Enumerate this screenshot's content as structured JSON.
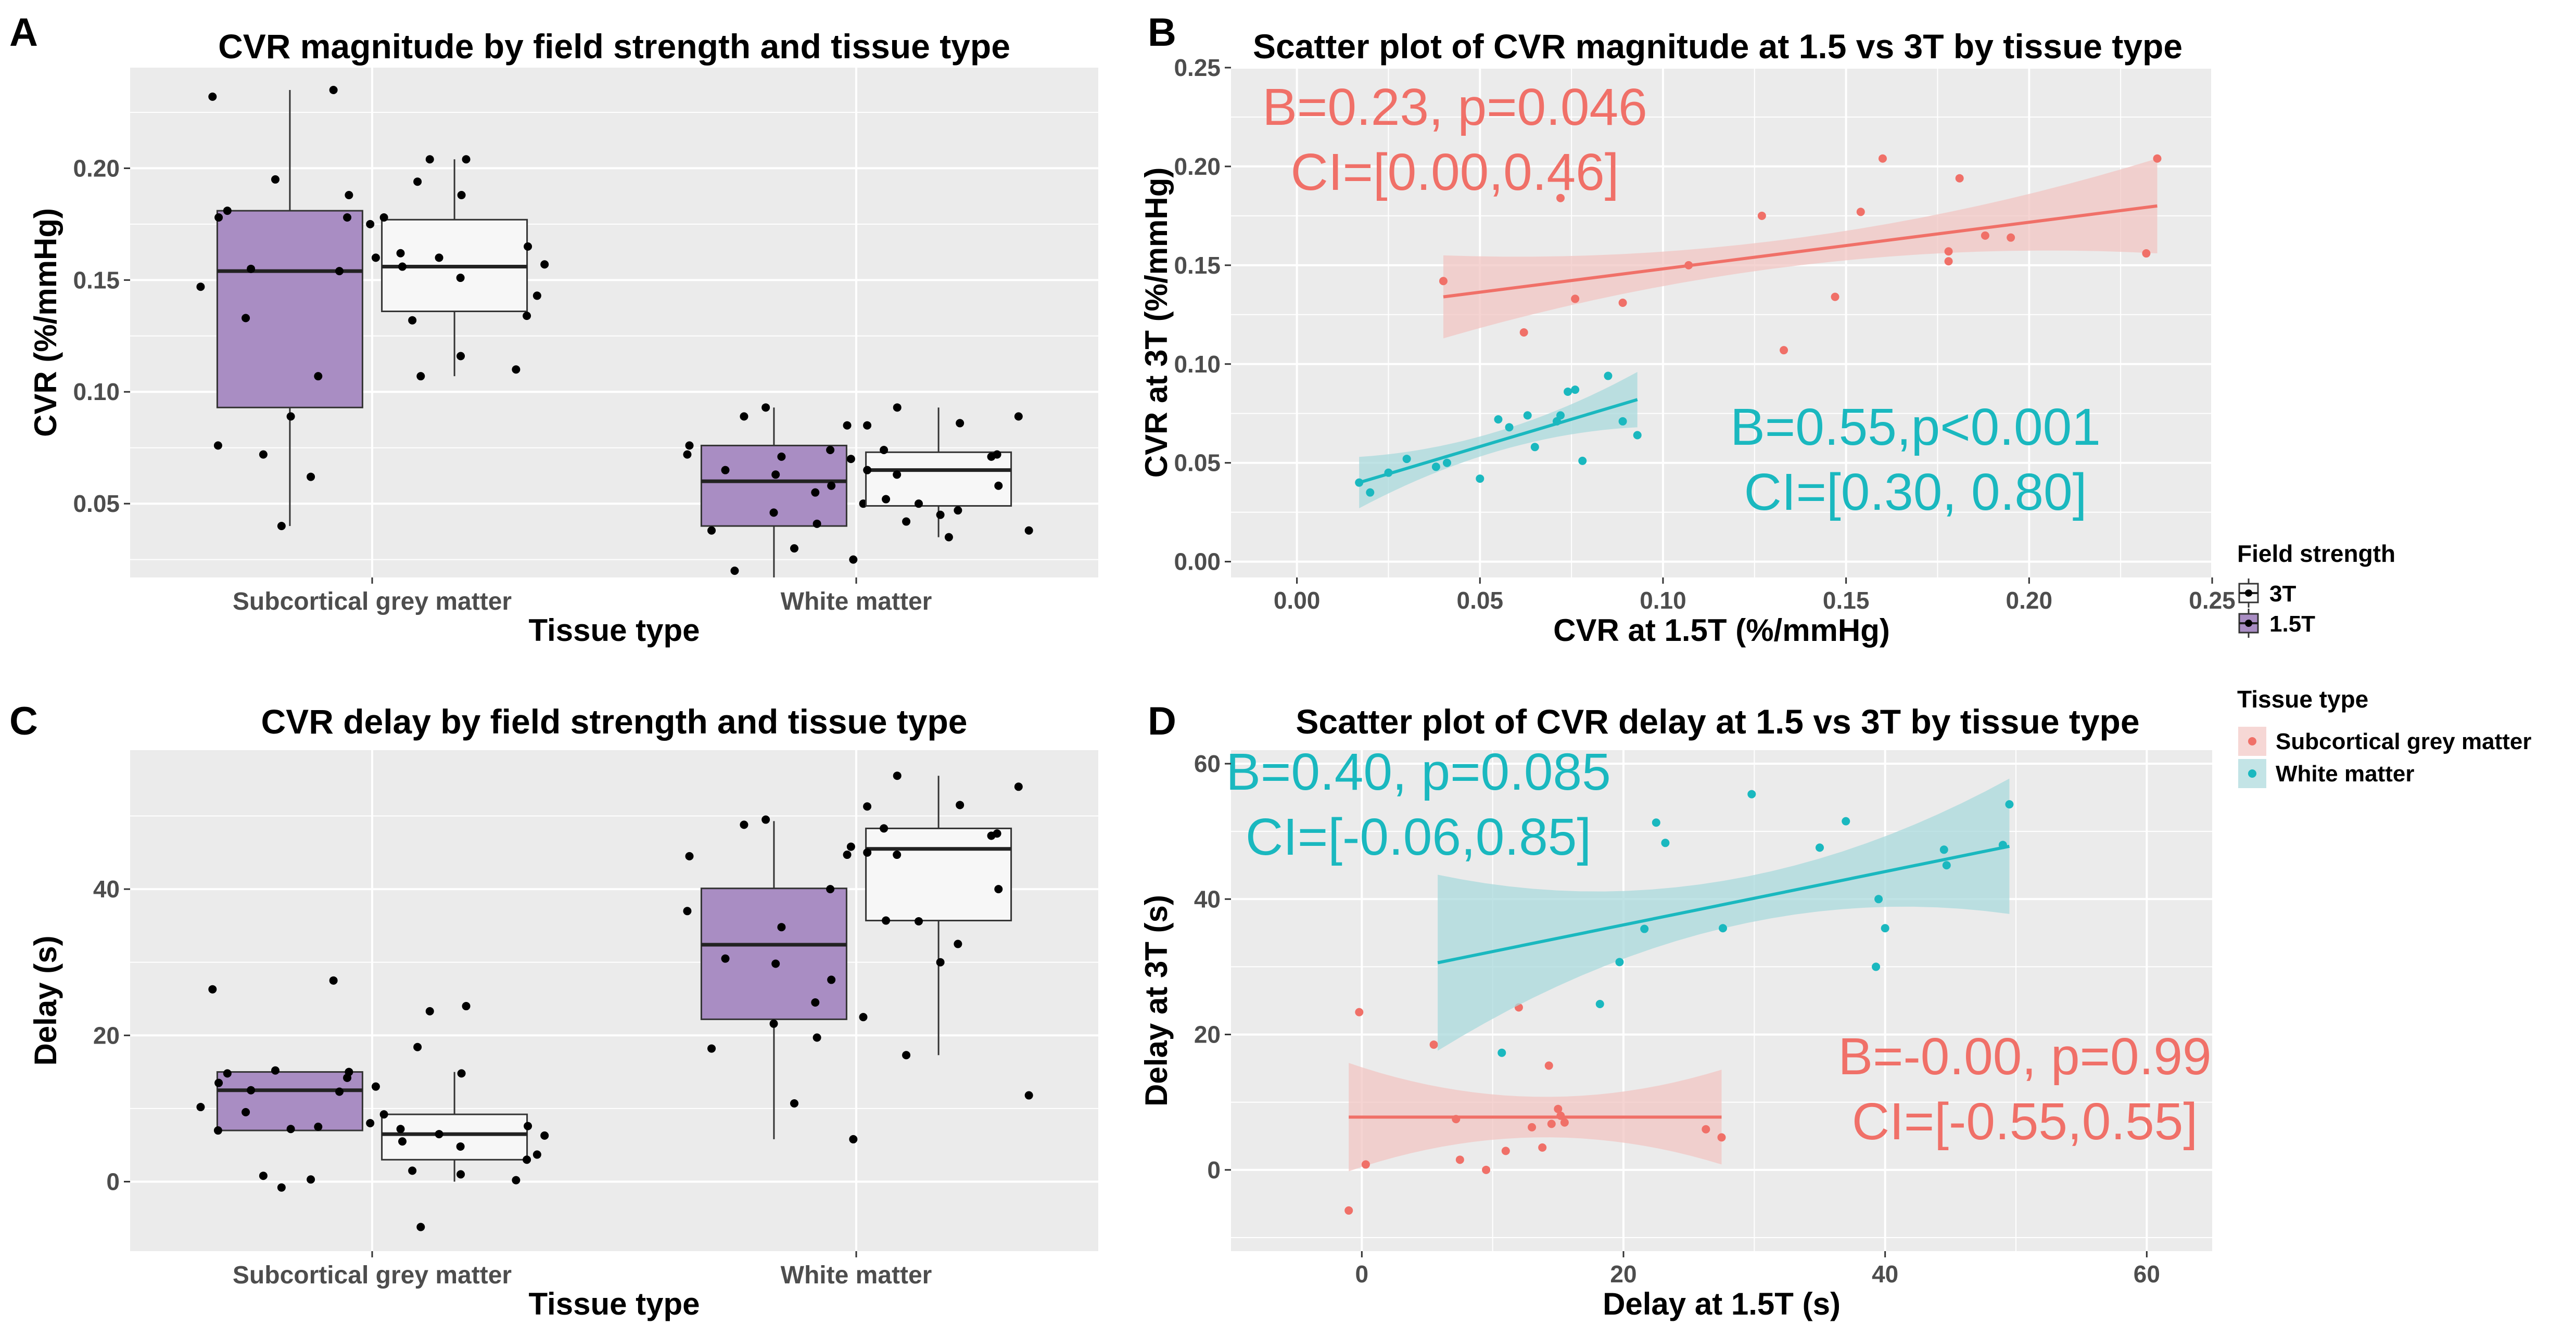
{
  "colors": {
    "panel_bg": "#ebebeb",
    "grid": "#ffffff",
    "box_15T": "#a98dc3",
    "box_3T": "#f7f7f7",
    "grey_matter": "#f07068",
    "white_matter": "#1ab8bf",
    "grey_band": "#f2c6c3",
    "white_band": "#a9d9dc"
  },
  "chart_data": [
    {
      "panel": "A",
      "type": "boxplot",
      "title": "CVR magnitude by field strength and tissue type",
      "xlabel": "Tissue type",
      "ylabel": "CVR (%/mmHg)",
      "ylim": [
        0.017,
        0.245
      ],
      "yticks": [
        0.05,
        0.1,
        0.15,
        0.2
      ],
      "ytick_labels": [
        "0.05",
        "0.10",
        "0.15",
        "0.20"
      ],
      "categories": [
        "Subcortical grey matter",
        "White matter"
      ],
      "groups": [
        {
          "field": "1.5T",
          "tissue": "Subcortical grey matter",
          "min": 0.04,
          "q1": 0.093,
          "median": 0.154,
          "q3": 0.181,
          "max": 0.235,
          "points": [
            0.235,
            0.232,
            0.195,
            0.188,
            0.181,
            0.178,
            0.178,
            0.16,
            0.155,
            0.154,
            0.147,
            0.133,
            0.107,
            0.089,
            0.076,
            0.072,
            0.062,
            0.04
          ]
        },
        {
          "field": "3T",
          "tissue": "Subcortical grey matter",
          "min": 0.107,
          "q1": 0.136,
          "median": 0.156,
          "q3": 0.177,
          "max": 0.204,
          "points": [
            0.204,
            0.204,
            0.194,
            0.188,
            0.178,
            0.175,
            0.165,
            0.162,
            0.16,
            0.157,
            0.156,
            0.151,
            0.143,
            0.134,
            0.132,
            0.116,
            0.11,
            0.107
          ]
        },
        {
          "field": "1.5T",
          "tissue": "White matter",
          "min": 0.017,
          "q1": 0.04,
          "median": 0.06,
          "q3": 0.076,
          "max": 0.093,
          "points": [
            0.093,
            0.089,
            0.085,
            0.076,
            0.074,
            0.072,
            0.071,
            0.065,
            0.063,
            0.058,
            0.055,
            0.05,
            0.046,
            0.041,
            0.038,
            0.03,
            0.025,
            0.02
          ]
        },
        {
          "field": "3T",
          "tissue": "White matter",
          "min": 0.035,
          "q1": 0.049,
          "median": 0.065,
          "q3": 0.073,
          "max": 0.093,
          "points": [
            0.093,
            0.089,
            0.086,
            0.085,
            0.074,
            0.072,
            0.071,
            0.07,
            0.065,
            0.063,
            0.058,
            0.052,
            0.05,
            0.047,
            0.045,
            0.042,
            0.038,
            0.035
          ]
        }
      ]
    },
    {
      "panel": "B",
      "type": "scatter",
      "title": "Scatter plot of CVR magnitude at 1.5 vs 3T by tissue type",
      "xlabel": "CVR at 1.5T (%/mmHg)",
      "ylabel": "CVR at 3T (%/mmHg)",
      "xlim": [
        -0.018,
        0.25
      ],
      "ylim": [
        -0.008,
        0.25
      ],
      "xticks": [
        0.0,
        0.05,
        0.1,
        0.15,
        0.2,
        0.25
      ],
      "xtick_labels": [
        "0.00",
        "0.05",
        "0.10",
        "0.15",
        "0.20",
        "0.25"
      ],
      "yticks": [
        0.0,
        0.05,
        0.1,
        0.15,
        0.2,
        0.25
      ],
      "ytick_labels": [
        "0.00",
        "0.05",
        "0.10",
        "0.15",
        "0.20",
        "0.25"
      ],
      "series": [
        {
          "name": "Subcortical grey matter",
          "points": [
            [
              0.04,
              0.142
            ],
            [
              0.062,
              0.116
            ],
            [
              0.072,
              0.184
            ],
            [
              0.076,
              0.133
            ],
            [
              0.089,
              0.131
            ],
            [
              0.107,
              0.15
            ],
            [
              0.127,
              0.175
            ],
            [
              0.133,
              0.107
            ],
            [
              0.147,
              0.134
            ],
            [
              0.154,
              0.177
            ],
            [
              0.16,
              0.204
            ],
            [
              0.178,
              0.152
            ],
            [
              0.178,
              0.157
            ],
            [
              0.181,
              0.194
            ],
            [
              0.188,
              0.165
            ],
            [
              0.195,
              0.164
            ],
            [
              0.232,
              0.156
            ],
            [
              0.235,
              0.204
            ]
          ],
          "fit": {
            "x0": 0.04,
            "y0": 0.134,
            "x1": 0.235,
            "y1": 0.18
          },
          "band_half_width": {
            "start": 0.021,
            "mid": 0.007,
            "end": 0.024
          }
        },
        {
          "name": "White matter",
          "points": [
            [
              0.017,
              0.04
            ],
            [
              0.02,
              0.035
            ],
            [
              0.025,
              0.045
            ],
            [
              0.03,
              0.052
            ],
            [
              0.038,
              0.048
            ],
            [
              0.041,
              0.05
            ],
            [
              0.05,
              0.042
            ],
            [
              0.055,
              0.072
            ],
            [
              0.058,
              0.068
            ],
            [
              0.063,
              0.074
            ],
            [
              0.065,
              0.058
            ],
            [
              0.071,
              0.071
            ],
            [
              0.072,
              0.074
            ],
            [
              0.074,
              0.086
            ],
            [
              0.076,
              0.087
            ],
            [
              0.078,
              0.051
            ],
            [
              0.085,
              0.094
            ],
            [
              0.089,
              0.071
            ],
            [
              0.093,
              0.064
            ]
          ],
          "fit": {
            "x0": 0.017,
            "y0": 0.04,
            "x1": 0.093,
            "y1": 0.082
          },
          "band_half_width": {
            "start": 0.013,
            "mid": 0.005,
            "end": 0.014
          }
        }
      ],
      "annotations": [
        {
          "series": "Subcortical grey matter",
          "line1": "B=0.23, p=0.046",
          "line2": "CI=[0.00,0.46]"
        },
        {
          "series": "White matter",
          "line1": "B=0.55,p<0.001",
          "line2": "CI=[0.30, 0.80]"
        }
      ]
    },
    {
      "panel": "C",
      "type": "boxplot",
      "title": "CVR delay by field strength and tissue type",
      "xlabel": "Tissue type",
      "ylabel": "Delay (s)",
      "ylim": [
        -9.5,
        59
      ],
      "yticks": [
        0,
        20,
        40
      ],
      "ytick_labels": [
        "0",
        "20",
        "40"
      ],
      "categories": [
        "Subcortical grey matter",
        "White matter"
      ],
      "groups": [
        {
          "field": "1.5T",
          "tissue": "Subcortical grey matter",
          "min": 7,
          "q1": 7,
          "median": 12.5,
          "q3": 15,
          "max": 15,
          "points": [
            27.5,
            26.3,
            15.2,
            15.0,
            14.8,
            14.2,
            13.5,
            13.0,
            12.5,
            12.3,
            10.2,
            9.5,
            7.5,
            7.2,
            7.0,
            0.8,
            0.3,
            -0.8
          ]
        },
        {
          "field": "3T",
          "tissue": "Subcortical grey matter",
          "min": 0,
          "q1": 3,
          "median": 6.5,
          "q3": 9.2,
          "max": 15,
          "points": [
            24.0,
            23.3,
            18.4,
            14.8,
            9.2,
            8.0,
            7.6,
            7.2,
            6.5,
            6.3,
            5.5,
            4.8,
            3.7,
            3.0,
            1.5,
            1.0,
            0.2,
            -6.2
          ]
        },
        {
          "field": "1.5T",
          "tissue": "White matter",
          "min": 5.8,
          "q1": 22.2,
          "median": 32.4,
          "q3": 40.1,
          "max": 49.3,
          "points": [
            49.5,
            48.8,
            44.7,
            44.5,
            40.0,
            37.0,
            34.8,
            30.5,
            29.8,
            27.6,
            24.5,
            22.5,
            21.6,
            19.7,
            18.2,
            10.7,
            5.8
          ]
        },
        {
          "field": "3T",
          "tissue": "White matter",
          "min": 17.3,
          "q1": 35.7,
          "median": 45.5,
          "q3": 48.3,
          "max": 55.5,
          "points": [
            55.5,
            54.0,
            51.5,
            51.3,
            48.3,
            47.6,
            47.3,
            45.8,
            45.0,
            44.7,
            40.0,
            35.7,
            35.6,
            32.5,
            30.0,
            17.3,
            11.8
          ]
        }
      ]
    },
    {
      "panel": "D",
      "type": "scatter",
      "title": "Scatter plot of CVR delay at 1.5 vs 3T by tissue type",
      "xlabel": "Delay at 1.5T (s)",
      "ylabel": "Delay at 3T (s)",
      "xlim": [
        -10,
        65
      ],
      "ylim": [
        -12,
        62
      ],
      "xticks": [
        0,
        20,
        40,
        60
      ],
      "xtick_labels": [
        "0",
        "20",
        "40",
        "60"
      ],
      "yticks": [
        0,
        20,
        40,
        60
      ],
      "ytick_labels": [
        "0",
        "20",
        "40",
        "60"
      ],
      "series": [
        {
          "name": "Subcortical grey matter",
          "points": [
            [
              -1,
              -6
            ],
            [
              -0.2,
              23.3
            ],
            [
              0.3,
              0.8
            ],
            [
              5.5,
              18.5
            ],
            [
              7.2,
              7.5
            ],
            [
              7.5,
              1.5
            ],
            [
              9.5,
              0
            ],
            [
              11,
              2.8
            ],
            [
              12,
              24
            ],
            [
              13,
              6.3
            ],
            [
              13.8,
              3.3
            ],
            [
              14.3,
              15.4
            ],
            [
              14.5,
              6.8
            ],
            [
              15,
              9
            ],
            [
              15.2,
              8
            ],
            [
              15.5,
              7
            ],
            [
              26.3,
              6
            ],
            [
              27.5,
              4.8
            ]
          ],
          "fit": {
            "x0": -1,
            "y0": 7.8,
            "x1": 27.5,
            "y1": 7.8
          },
          "band_half_width": {
            "start": 8,
            "mid": 3,
            "end": 7
          }
        },
        {
          "name": "White matter",
          "points": [
            [
              10.7,
              17.3
            ],
            [
              18.2,
              24.5
            ],
            [
              19.7,
              30.7
            ],
            [
              21.6,
              35.6
            ],
            [
              22.5,
              51.3
            ],
            [
              23.2,
              48.3
            ],
            [
              27.6,
              35.7
            ],
            [
              29.8,
              55.5
            ],
            [
              35.0,
              47.6
            ],
            [
              37.0,
              51.5
            ],
            [
              39.3,
              30
            ],
            [
              39.5,
              40
            ],
            [
              40.0,
              35.7
            ],
            [
              44.5,
              47.3
            ],
            [
              44.7,
              45
            ],
            [
              49.0,
              48
            ],
            [
              49.5,
              54
            ]
          ],
          "fit": {
            "x0": 5.8,
            "y0": 30.6,
            "x1": 49.5,
            "y1": 47.8
          },
          "band_half_width": {
            "start": 13,
            "mid": 3.5,
            "end": 10
          }
        }
      ],
      "annotations": [
        {
          "series": "White matter",
          "line1": "B=0.40, p=0.085",
          "line2": "CI=[-0.06,0.85]"
        },
        {
          "series": "Subcortical grey matter",
          "line1": "B=-0.00, p=0.99",
          "line2": "CI=[-0.55,0.55]"
        }
      ]
    }
  ],
  "legend": {
    "field_strength": {
      "title": "Field strength",
      "items": [
        "3T",
        "1.5T"
      ]
    },
    "tissue_type": {
      "title": "Tissue type",
      "items": [
        "Subcortical grey matter",
        "White matter"
      ]
    }
  }
}
